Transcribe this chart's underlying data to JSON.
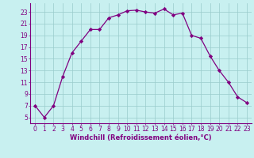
{
  "x": [
    0,
    1,
    2,
    3,
    4,
    5,
    6,
    7,
    8,
    9,
    10,
    11,
    12,
    13,
    14,
    15,
    16,
    17,
    18,
    19,
    20,
    21,
    22,
    23
  ],
  "y": [
    7,
    5,
    7,
    12,
    16,
    18,
    20,
    20,
    22,
    22.5,
    23.2,
    23.3,
    23,
    22.8,
    23.5,
    22.5,
    22.8,
    19,
    18.5,
    15.5,
    13,
    11,
    8.5,
    7.5
  ],
  "line_color": "#800080",
  "marker": "D",
  "marker_size": 2.2,
  "bg_color": "#c8f0f0",
  "grid_color": "#99cccc",
  "xlabel": "Windchill (Refroidissement éolien,°C)",
  "xlim": [
    -0.5,
    23.5
  ],
  "ylim": [
    4,
    24.5
  ],
  "xticks": [
    0,
    1,
    2,
    3,
    4,
    5,
    6,
    7,
    8,
    9,
    10,
    11,
    12,
    13,
    14,
    15,
    16,
    17,
    18,
    19,
    20,
    21,
    22,
    23
  ],
  "yticks": [
    5,
    7,
    9,
    11,
    13,
    15,
    17,
    19,
    21,
    23
  ],
  "tick_fontsize": 5.5,
  "label_fontsize": 6.0
}
